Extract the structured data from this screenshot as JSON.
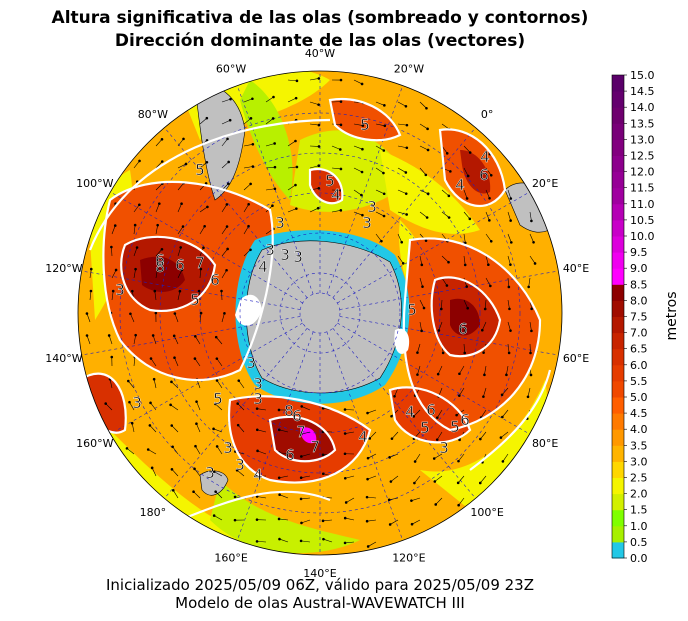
{
  "title_line1": "Altura significativa de las olas (sombreado y contornos)",
  "title_line2": "Dirección dominante de las olas (vectores)",
  "caption_line1": "Inicializado 2025/05/09 06Z, válido para 2025/05/09 23Z",
  "caption_line2": "Modelo de olas Austral-WAVEWATCH III",
  "colorbar": {
    "unit_label": "metros",
    "ticks": [
      "0.0",
      "0.5",
      "1.0",
      "1.5",
      "2.0",
      "2.5",
      "3.0",
      "3.5",
      "4.0",
      "4.5",
      "5.0",
      "5.5",
      "6.0",
      "6.5",
      "7.0",
      "7.5",
      "8.0",
      "8.5",
      "9.0",
      "9.5",
      "10.0",
      "10.5",
      "11.0",
      "11.5",
      "12.0",
      "12.5",
      "13.0",
      "13.5",
      "14.0",
      "14.5",
      "15.0"
    ],
    "colors": [
      "#22c8e6",
      "#a7f000",
      "#7fff00",
      "#d2f000",
      "#f5f500",
      "#ffd700",
      "#ffb400",
      "#ff9800",
      "#ff7a00",
      "#ff5e00",
      "#f04800",
      "#e63c00",
      "#d83000",
      "#c82400",
      "#b41800",
      "#a00c00",
      "#8c0000",
      "#ff00ff",
      "#f000f0",
      "#dc00dc",
      "#c800c8",
      "#b400b4",
      "#a000a0",
      "#960096",
      "#8c008c",
      "#82007f",
      "#780078",
      "#6e006e",
      "#64006e",
      "#5a0069"
    ]
  },
  "longitude_labels": [
    "40°W",
    "20°W",
    "0°",
    "20°E",
    "40°E",
    "60°E",
    "80°E",
    "100°E",
    "120°E",
    "140°E",
    "160°E",
    "180°",
    "160°W",
    "140°W",
    "120°W",
    "100°W",
    "80°W",
    "60°W"
  ],
  "contour_labels": [
    "5",
    "4",
    "5",
    "3",
    "4",
    "3",
    "6",
    "4",
    "5",
    "6",
    "3",
    "3",
    "6",
    "8",
    "7",
    "6",
    "5",
    "4",
    "3",
    "3",
    "3",
    "3",
    "5",
    "3",
    "3",
    "3",
    "5",
    "8",
    "6",
    "7",
    "6",
    "7",
    "4",
    "3",
    "5",
    "4",
    "6",
    "6",
    "3",
    "6",
    "5",
    "3",
    "3",
    "3",
    "4"
  ]
}
